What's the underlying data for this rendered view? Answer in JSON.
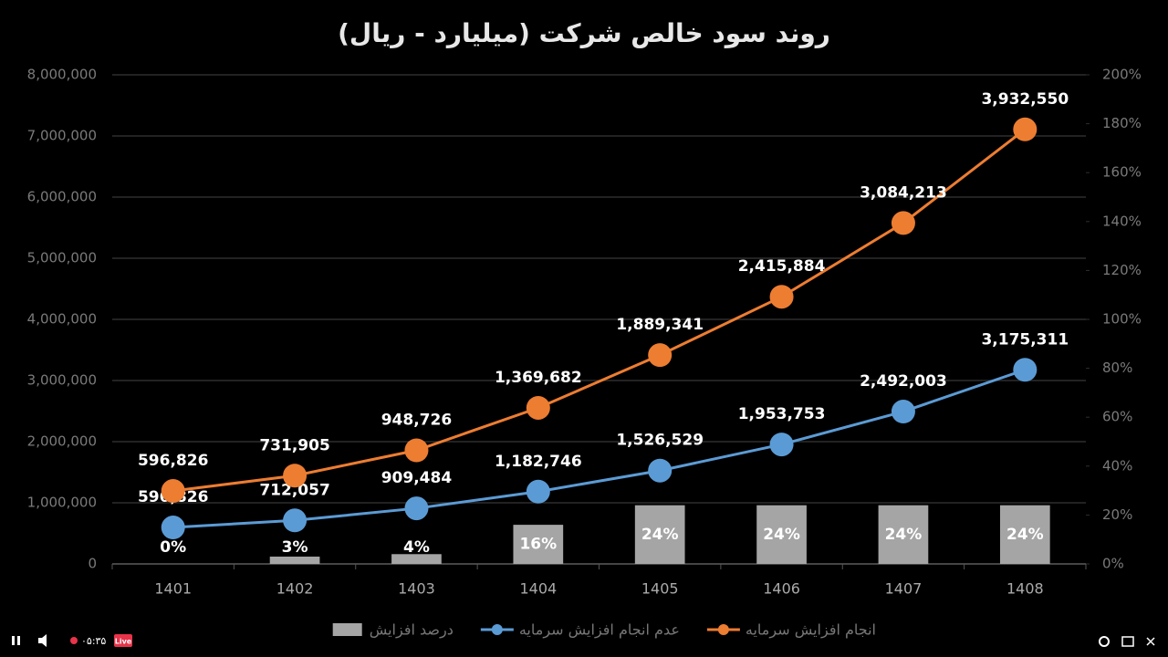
{
  "chart_data": {
    "type": "line",
    "stacked": true,
    "title": "روند سود خالص شرکت (میلیارد - ریال)",
    "categories": [
      "1401",
      "1402",
      "1403",
      "1404",
      "1405",
      "1406",
      "1407",
      "1408"
    ],
    "series": [
      {
        "name": "درصد افزایش",
        "type": "bar",
        "axis": "y2",
        "color": "#a5a5a5",
        "values": [
          0,
          3,
          4,
          16,
          24,
          24,
          24,
          24
        ],
        "value_labels": [
          "0%",
          "3%",
          "4%",
          "16%",
          "24%",
          "24%",
          "24%",
          "24%"
        ]
      },
      {
        "name": "عدم انجام افزایش سرمایه",
        "type": "line",
        "color": "#5b9bd5",
        "values": [
          596826,
          712057,
          909484,
          1182746,
          1526529,
          1953753,
          2492003,
          3175311
        ],
        "value_labels": [
          "596,826",
          "712,057",
          "909,484",
          "1,182,746",
          "1,526,529",
          "1,953,753",
          "2,492,003",
          "3,175,311"
        ]
      },
      {
        "name": "انجام افزایش سرمایه",
        "type": "line",
        "color": "#ed7d31",
        "values": [
          596826,
          731905,
          948726,
          1369682,
          1889341,
          2415884,
          3084213,
          3932550
        ],
        "value_labels": [
          "596,826",
          "731,905",
          "948,726",
          "1,369,682",
          "1,889,341",
          "2,415,884",
          "3,084,213",
          "3,932,550"
        ]
      }
    ],
    "ylim": [
      0,
      8000000
    ],
    "yticks": [
      0,
      {
        "value": 1000000,
        "label": "1,000,000"
      },
      {
        "value": 2000000,
        "label": "2,000,000"
      },
      {
        "value": 3000000,
        "label": "3,000,000"
      },
      {
        "value": 4000000,
        "label": "4,000,000"
      },
      {
        "value": 5000000,
        "label": "5,000,000"
      },
      {
        "value": 6000000,
        "label": "6,000,000"
      },
      {
        "value": 7000000,
        "label": "7,000,000"
      },
      {
        "value": 8000000,
        "label": "8,000,000"
      }
    ],
    "y2lim": [
      0,
      200
    ],
    "y2ticks": [
      {
        "value": 0,
        "label": "0%"
      },
      {
        "value": 20,
        "label": "20%"
      },
      {
        "value": 40,
        "label": "40%"
      },
      {
        "value": 60,
        "label": "60%"
      },
      {
        "value": 80,
        "label": "80%"
      },
      {
        "value": 100,
        "label": "100%"
      },
      {
        "value": 120,
        "label": "120%"
      },
      {
        "value": 140,
        "label": "140%"
      },
      {
        "value": 160,
        "label": "160%"
      },
      {
        "value": 180,
        "label": "180%"
      },
      {
        "value": 200,
        "label": "200%"
      }
    ],
    "grid": true,
    "legend": "bottom"
  },
  "player": {
    "time": "۰۵:۳۵",
    "badge": "Live"
  }
}
